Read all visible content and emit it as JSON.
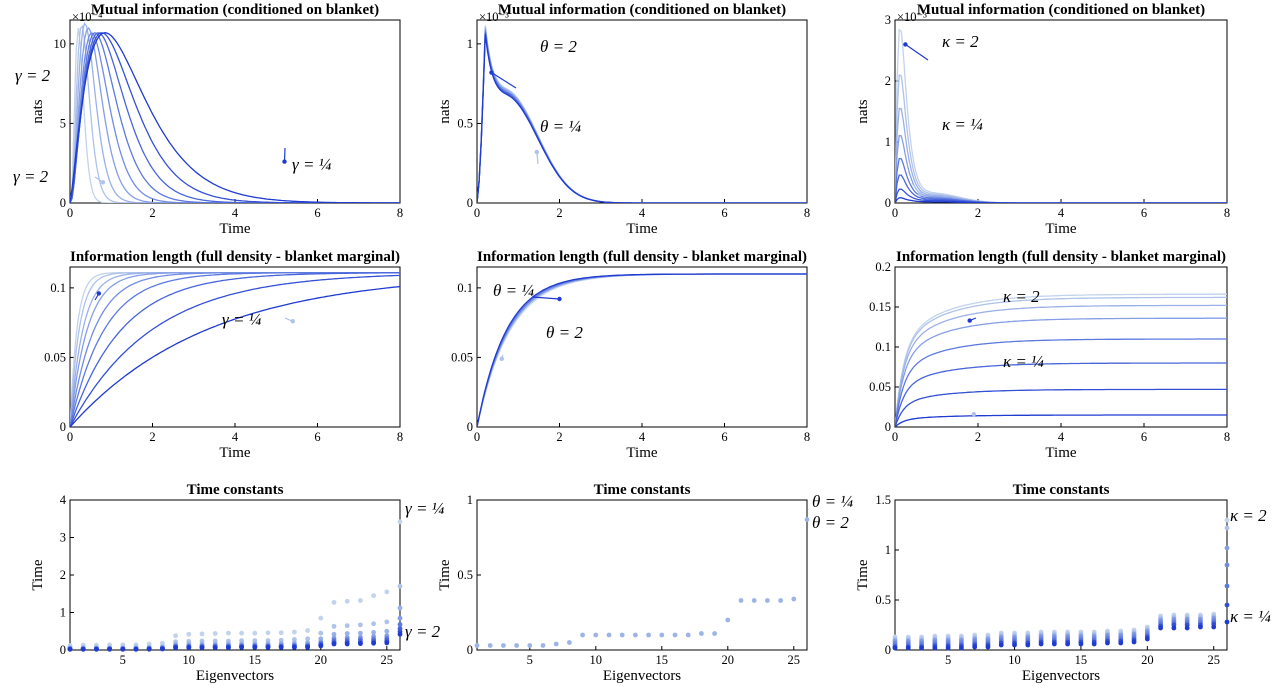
{
  "palette": [
    "#c2d3ec",
    "#aec2ea",
    "#9ab0e8",
    "#869ee6",
    "#728ce4",
    "#5d79e0",
    "#4965dc",
    "#3450d6",
    "#1f3bd0"
  ],
  "chart_data": [
    {
      "type": "line",
      "id": "mi_gamma",
      "title": "Mutual information (conditioned on blanket)",
      "xlabel": "Time",
      "ylabel": "nats",
      "exponent": "×10⁻⁴",
      "xlim": [
        0,
        8
      ],
      "ylim": [
        0,
        11.5
      ],
      "xticks": [
        0,
        2,
        4,
        6,
        8
      ],
      "yticks": [
        0,
        5,
        10
      ],
      "series_kind": "mi",
      "peaks": [
        11.0,
        11.2,
        11.3,
        11.0,
        10.7
      ],
      "annotations": [
        {
          "label": "γ = ¼",
          "points_to": [
            5.2,
            2.6
          ]
        },
        {
          "label": "γ = 2",
          "points_to": [
            0.8,
            1.3
          ]
        }
      ]
    },
    {
      "type": "line",
      "id": "mi_theta",
      "title": "Mutual information (conditioned on blanket)",
      "xlabel": "Time",
      "ylabel": "nats",
      "exponent": "×10⁻³",
      "xlim": [
        0,
        8
      ],
      "ylim": [
        0,
        1.15
      ],
      "xticks": [
        0,
        2,
        4,
        6,
        8
      ],
      "yticks": [
        0,
        0.5,
        1
      ],
      "series_kind": "mi_theta",
      "annotations": [
        {
          "label": "θ = 2",
          "points_to": [
            0.35,
            0.82
          ]
        },
        {
          "label": "θ = ¼",
          "points_to": [
            1.45,
            0.32
          ]
        }
      ]
    },
    {
      "type": "line",
      "id": "mi_kappa",
      "title": "Mutual information (conditioned on blanket)",
      "xlabel": "Time",
      "ylabel": "nats",
      "exponent": "×10⁻³",
      "xlim": [
        0,
        8
      ],
      "ylim": [
        0,
        3
      ],
      "xticks": [
        0,
        2,
        4,
        6,
        8
      ],
      "yticks": [
        0,
        1,
        2,
        3
      ],
      "series_kind": "mi_kappa",
      "annotations": [
        {
          "label": "κ = 2",
          "points_to": [
            0.25,
            2.6
          ]
        },
        {
          "label": "κ = ¼",
          "points_to": [
            0.6,
            0.15
          ]
        }
      ]
    },
    {
      "type": "line",
      "id": "il_gamma",
      "title": "Information length (full density - blanket marginal)",
      "xlabel": "Time",
      "ylabel": "",
      "xlim": [
        0,
        8
      ],
      "ylim": [
        0,
        0.115
      ],
      "xticks": [
        0,
        2,
        4,
        6,
        8
      ],
      "yticks": [
        0,
        0.05,
        0.1
      ],
      "series_kind": "il_gamma",
      "asymptote": 0.111,
      "annotations": [
        {
          "label": "γ = 2",
          "points_to": [
            0.7,
            0.096
          ]
        },
        {
          "label": "γ = ¼",
          "points_to": [
            5.4,
            0.076
          ]
        }
      ]
    },
    {
      "type": "line",
      "id": "il_theta",
      "title": "Information length (full density - blanket marginal)",
      "xlabel": "Time",
      "ylabel": "",
      "xlim": [
        0,
        8
      ],
      "ylim": [
        0,
        0.115
      ],
      "xticks": [
        0,
        2,
        4,
        6,
        8
      ],
      "yticks": [
        0,
        0.05,
        0.1
      ],
      "series_kind": "il_theta",
      "asymptote": 0.11,
      "annotations": [
        {
          "label": "θ = ¼",
          "points_to": [
            2.0,
            0.092
          ]
        },
        {
          "label": "θ = 2",
          "points_to": [
            0.6,
            0.049
          ]
        }
      ]
    },
    {
      "type": "line",
      "id": "il_kappa",
      "title": "Information length (full density - blanket marginal)",
      "xlabel": "Time",
      "ylabel": "",
      "xlim": [
        0,
        8
      ],
      "ylim": [
        0,
        0.2
      ],
      "xticks": [
        0,
        2,
        4,
        6,
        8
      ],
      "yticks": [
        0,
        0.05,
        0.1,
        0.15,
        0.2
      ],
      "series_kind": "il_kappa",
      "asymptotes": [
        0.166,
        0.162,
        0.152,
        0.136,
        0.11,
        0.08,
        0.047,
        0.015
      ],
      "annotations": [
        {
          "label": "κ = 2",
          "points_to": [
            1.8,
            0.133
          ]
        },
        {
          "label": "κ = ¼",
          "points_to": [
            1.9,
            0.016
          ]
        }
      ]
    },
    {
      "type": "scatter",
      "id": "tc_gamma",
      "title": "Time constants",
      "xlabel": "Eigenvectors",
      "ylabel": "Time",
      "xlim": [
        1,
        26
      ],
      "ylim": [
        0,
        4
      ],
      "xticks": [
        5,
        10,
        15,
        20,
        25
      ],
      "yticks": [
        0,
        1,
        2,
        3,
        4
      ],
      "series": [
        {
          "values": [
            0.12,
            0.13,
            0.13,
            0.14,
            0.14,
            0.14,
            0.16,
            0.18,
            0.38,
            0.42,
            0.43,
            0.44,
            0.45,
            0.45,
            0.45,
            0.46,
            0.46,
            0.48,
            0.52,
            0.85,
            1.27,
            1.3,
            1.32,
            1.45,
            1.55,
            3.42
          ]
        },
        {
          "values": [
            0.07,
            0.07,
            0.07,
            0.07,
            0.07,
            0.08,
            0.08,
            0.1,
            0.22,
            0.23,
            0.24,
            0.24,
            0.24,
            0.25,
            0.25,
            0.25,
            0.26,
            0.28,
            0.3,
            0.45,
            0.63,
            0.65,
            0.67,
            0.7,
            0.75,
            1.7
          ]
        },
        {
          "values": [
            0.05,
            0.05,
            0.05,
            0.05,
            0.05,
            0.05,
            0.06,
            0.07,
            0.15,
            0.16,
            0.16,
            0.16,
            0.17,
            0.17,
            0.17,
            0.17,
            0.18,
            0.19,
            0.2,
            0.3,
            0.42,
            0.44,
            0.45,
            0.47,
            0.5,
            1.12
          ]
        },
        {
          "values": [
            0.04,
            0.04,
            0.04,
            0.04,
            0.04,
            0.04,
            0.05,
            0.06,
            0.12,
            0.12,
            0.12,
            0.13,
            0.13,
            0.13,
            0.13,
            0.13,
            0.14,
            0.14,
            0.15,
            0.22,
            0.32,
            0.33,
            0.34,
            0.36,
            0.38,
            0.85
          ]
        },
        {
          "values": [
            0.03,
            0.03,
            0.03,
            0.03,
            0.03,
            0.03,
            0.04,
            0.05,
            0.1,
            0.1,
            0.1,
            0.1,
            0.1,
            0.11,
            0.11,
            0.11,
            0.11,
            0.12,
            0.12,
            0.18,
            0.26,
            0.27,
            0.28,
            0.29,
            0.31,
            0.68
          ]
        },
        {
          "values": [
            0.03,
            0.03,
            0.03,
            0.03,
            0.03,
            0.03,
            0.03,
            0.04,
            0.08,
            0.08,
            0.08,
            0.09,
            0.09,
            0.09,
            0.09,
            0.09,
            0.09,
            0.1,
            0.1,
            0.15,
            0.21,
            0.22,
            0.23,
            0.24,
            0.26,
            0.57
          ]
        },
        {
          "values": [
            0.02,
            0.02,
            0.02,
            0.02,
            0.02,
            0.02,
            0.03,
            0.03,
            0.07,
            0.07,
            0.07,
            0.07,
            0.07,
            0.08,
            0.08,
            0.08,
            0.08,
            0.08,
            0.09,
            0.13,
            0.18,
            0.19,
            0.19,
            0.2,
            0.22,
            0.49
          ]
        },
        {
          "values": [
            0.02,
            0.02,
            0.02,
            0.02,
            0.02,
            0.02,
            0.02,
            0.03,
            0.06,
            0.06,
            0.06,
            0.06,
            0.06,
            0.07,
            0.07,
            0.07,
            0.07,
            0.07,
            0.07,
            0.11,
            0.16,
            0.16,
            0.17,
            0.18,
            0.19,
            0.42
          ]
        }
      ],
      "annotations": [
        {
          "label": "γ = ¼",
          "near": [
            26,
            3.42
          ]
        },
        {
          "label": "γ = 2",
          "near": [
            26,
            0.4
          ]
        }
      ]
    },
    {
      "type": "scatter",
      "id": "tc_theta",
      "title": "Time constants",
      "xlabel": "Eigenvectors",
      "ylabel": "Time",
      "xlim": [
        1,
        26
      ],
      "ylim": [
        0,
        1
      ],
      "xticks": [
        5,
        10,
        15,
        20,
        25
      ],
      "yticks": [
        0,
        0.5,
        1
      ],
      "series": [
        {
          "values": [
            0.03,
            0.03,
            0.03,
            0.03,
            0.03,
            0.03,
            0.04,
            0.05,
            0.1,
            0.1,
            0.1,
            0.1,
            0.1,
            0.1,
            0.1,
            0.1,
            0.1,
            0.11,
            0.11,
            0.2,
            0.33,
            0.33,
            0.33,
            0.33,
            0.34,
            0.87
          ]
        }
      ],
      "annotations": [
        {
          "label": "θ = ¼",
          "near": [
            26,
            0.87
          ]
        },
        {
          "label": "θ = 2",
          "near": [
            26,
            0.87
          ]
        }
      ]
    },
    {
      "type": "scatter",
      "id": "tc_kappa",
      "title": "Time constants",
      "xlabel": "Eigenvectors",
      "ylabel": "Time",
      "xlim": [
        1,
        26
      ],
      "ylim": [
        0,
        1.5
      ],
      "xticks": [
        5,
        10,
        15,
        20,
        25
      ],
      "yticks": [
        0,
        0.5,
        1,
        1.5
      ],
      "series": [
        {
          "values": [
            0.13,
            0.13,
            0.13,
            0.14,
            0.14,
            0.14,
            0.15,
            0.15,
            0.17,
            0.17,
            0.17,
            0.18,
            0.18,
            0.18,
            0.18,
            0.18,
            0.19,
            0.19,
            0.2,
            0.23,
            0.34,
            0.35,
            0.35,
            0.35,
            0.36,
            1.3
          ]
        },
        {
          "values": [
            0.11,
            0.11,
            0.11,
            0.12,
            0.12,
            0.12,
            0.13,
            0.13,
            0.15,
            0.15,
            0.15,
            0.16,
            0.16,
            0.16,
            0.16,
            0.16,
            0.17,
            0.17,
            0.18,
            0.21,
            0.32,
            0.33,
            0.33,
            0.33,
            0.34,
            1.22
          ]
        },
        {
          "values": [
            0.09,
            0.09,
            0.09,
            0.1,
            0.1,
            0.1,
            0.11,
            0.11,
            0.13,
            0.13,
            0.13,
            0.14,
            0.14,
            0.14,
            0.14,
            0.14,
            0.15,
            0.15,
            0.16,
            0.19,
            0.3,
            0.31,
            0.31,
            0.31,
            0.32,
            1.02
          ]
        },
        {
          "values": [
            0.07,
            0.07,
            0.07,
            0.08,
            0.08,
            0.08,
            0.09,
            0.09,
            0.11,
            0.11,
            0.11,
            0.12,
            0.12,
            0.12,
            0.12,
            0.12,
            0.13,
            0.13,
            0.14,
            0.17,
            0.28,
            0.29,
            0.29,
            0.29,
            0.3,
            0.85
          ]
        },
        {
          "values": [
            0.05,
            0.05,
            0.05,
            0.06,
            0.06,
            0.06,
            0.07,
            0.07,
            0.09,
            0.09,
            0.09,
            0.1,
            0.1,
            0.1,
            0.1,
            0.1,
            0.11,
            0.11,
            0.12,
            0.15,
            0.26,
            0.27,
            0.27,
            0.27,
            0.28,
            0.64
          ]
        },
        {
          "values": [
            0.03,
            0.03,
            0.03,
            0.04,
            0.04,
            0.04,
            0.05,
            0.05,
            0.07,
            0.07,
            0.07,
            0.08,
            0.08,
            0.08,
            0.08,
            0.08,
            0.09,
            0.09,
            0.1,
            0.13,
            0.24,
            0.25,
            0.25,
            0.25,
            0.26,
            0.45
          ]
        },
        {
          "values": [
            0.02,
            0.02,
            0.02,
            0.02,
            0.02,
            0.02,
            0.03,
            0.03,
            0.05,
            0.05,
            0.05,
            0.06,
            0.06,
            0.06,
            0.06,
            0.06,
            0.07,
            0.07,
            0.08,
            0.11,
            0.22,
            0.22,
            0.22,
            0.23,
            0.23,
            0.28
          ]
        }
      ],
      "annotations": [
        {
          "label": "κ = 2",
          "near": [
            26,
            1.3
          ]
        },
        {
          "label": "κ = ¼",
          "near": [
            26,
            0.28
          ]
        }
      ]
    }
  ]
}
